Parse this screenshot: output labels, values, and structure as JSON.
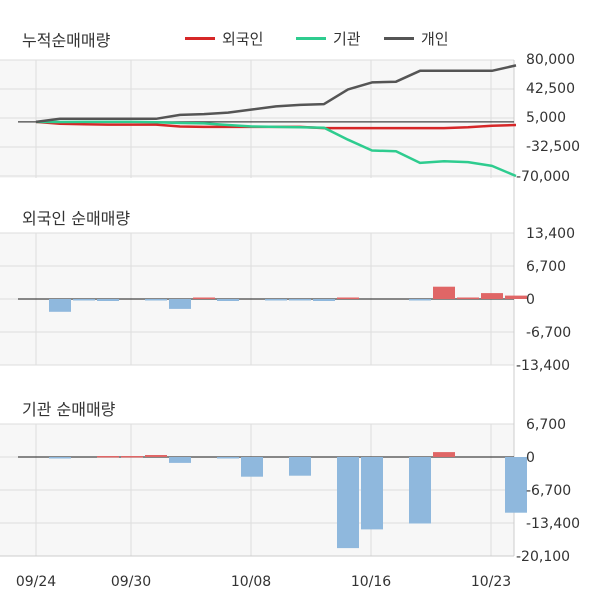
{
  "colors": {
    "foreign": "#d62728",
    "foreign_bar": "#e06666",
    "institution": "#2ecc8f",
    "individual": "#555555",
    "negative_bar": "#8fb8dd",
    "grid": "#dddddd",
    "panel_bg": "#f7f7f7",
    "text": "#333333"
  },
  "chart_data": [
    {
      "type": "line",
      "title": "누적순매매량",
      "legend": [
        {
          "name": "외국인",
          "color_key": "foreign"
        },
        {
          "name": "기관",
          "color_key": "institution"
        },
        {
          "name": "개인",
          "color_key": "individual"
        }
      ],
      "x_labels": [
        "09/24",
        "09/30",
        "10/08",
        "10/16",
        "10/23"
      ],
      "y_ticks": [
        "80,000",
        "42,500",
        "5,000",
        "-32,500",
        "-70,000"
      ],
      "ylim": [
        -70000,
        80000
      ],
      "series": [
        {
          "name": "외국인",
          "color_key": "foreign",
          "values": [
            0,
            -2500,
            -3200,
            -3500,
            -3500,
            -3500,
            -6000,
            -6500,
            -6500,
            -6500,
            -6500,
            -6500,
            -8000,
            -8000,
            -8000,
            -8000,
            -8000,
            -8000,
            -7000,
            -5000,
            -4000
          ]
        },
        {
          "name": "기관",
          "color_key": "institution",
          "values": [
            0,
            -200,
            0,
            0,
            0,
            -500,
            -1500,
            -2000,
            -4000,
            -6000,
            -6500,
            -7000,
            -7500,
            -23000,
            -37000,
            -38000,
            -53000,
            -51000,
            -52000,
            -57000,
            -70000
          ]
        },
        {
          "name": "개인",
          "color_key": "individual",
          "values": [
            0,
            4000,
            4000,
            4000,
            4000,
            4000,
            9000,
            10000,
            12000,
            16000,
            20000,
            22000,
            23000,
            42000,
            51000,
            52000,
            66000,
            66000,
            66000,
            66000,
            73000
          ]
        }
      ]
    },
    {
      "type": "bar",
      "title": "외국인 순매매량",
      "y_ticks": [
        "13,400",
        "6,700",
        "0",
        "-6,700",
        "-13,400"
      ],
      "ylim": [
        -13400,
        13400
      ],
      "values": [
        -2600,
        -200,
        -400,
        0,
        -300,
        -2000,
        300,
        -400,
        0,
        -200,
        -200,
        -400,
        300,
        0,
        0,
        -300,
        2500,
        300,
        1200,
        700
      ]
    },
    {
      "type": "bar",
      "title": "기관 순매매량",
      "y_ticks": [
        "6,700",
        "0",
        "-6,700",
        "-13,400",
        "-20,100"
      ],
      "ylim": [
        -20100,
        6700
      ],
      "values": [
        -300,
        0,
        200,
        200,
        400,
        -1200,
        0,
        -300,
        -4000,
        0,
        -3800,
        0,
        -18500,
        -14700,
        0,
        -13500,
        1000,
        0,
        0,
        -11300
      ]
    }
  ]
}
